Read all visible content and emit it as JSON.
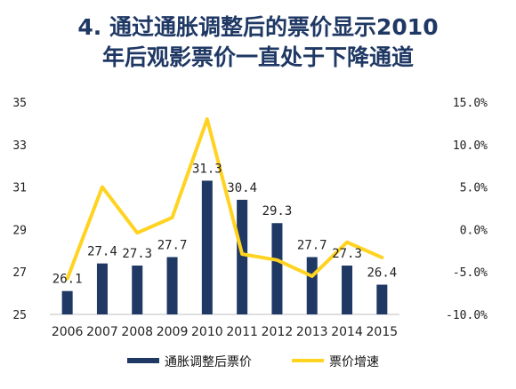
{
  "title_lines": [
    "4.  通过通胀调整后的票价显示2010",
    "年后观影票价一直处于下降通道"
  ],
  "chart_data": {
    "type": "bar+line",
    "categories": [
      "2006",
      "2007",
      "2008",
      "2009",
      "2010",
      "2011",
      "2012",
      "2013",
      "2014",
      "2015"
    ],
    "series": [
      {
        "name": "通胀调整后票价",
        "type": "bar",
        "axis": "left",
        "color": "#1f3864",
        "values": [
          26.1,
          27.4,
          27.3,
          27.7,
          31.3,
          30.4,
          29.3,
          27.7,
          27.3,
          26.4
        ],
        "labels": [
          "26.1",
          "27.4",
          "27.3",
          "27.7",
          "31.3",
          "30.4",
          "29.3",
          "27.7",
          "27.3",
          "26.4"
        ]
      },
      {
        "name": "票价增速",
        "type": "line",
        "axis": "right",
        "color": "#ffd320",
        "values": [
          -5.8,
          5.0,
          -0.4,
          1.4,
          13.0,
          -2.9,
          -3.6,
          -5.5,
          -1.5,
          -3.3
        ]
      }
    ],
    "y_left": {
      "min": 25,
      "max": 35,
      "ticks": [
        "25",
        "27",
        "29",
        "31",
        "33",
        "35"
      ],
      "tick_values": [
        25,
        27,
        29,
        31,
        33,
        35
      ]
    },
    "y_right": {
      "min": -10,
      "max": 15,
      "ticks": [
        "-10.0%",
        "-5.0%",
        "0.0%",
        "5.0%",
        "10.0%",
        "15.0%"
      ],
      "tick_values": [
        -10,
        -5,
        0,
        5,
        10,
        15
      ]
    },
    "legend_position": "bottom",
    "grid": false
  }
}
